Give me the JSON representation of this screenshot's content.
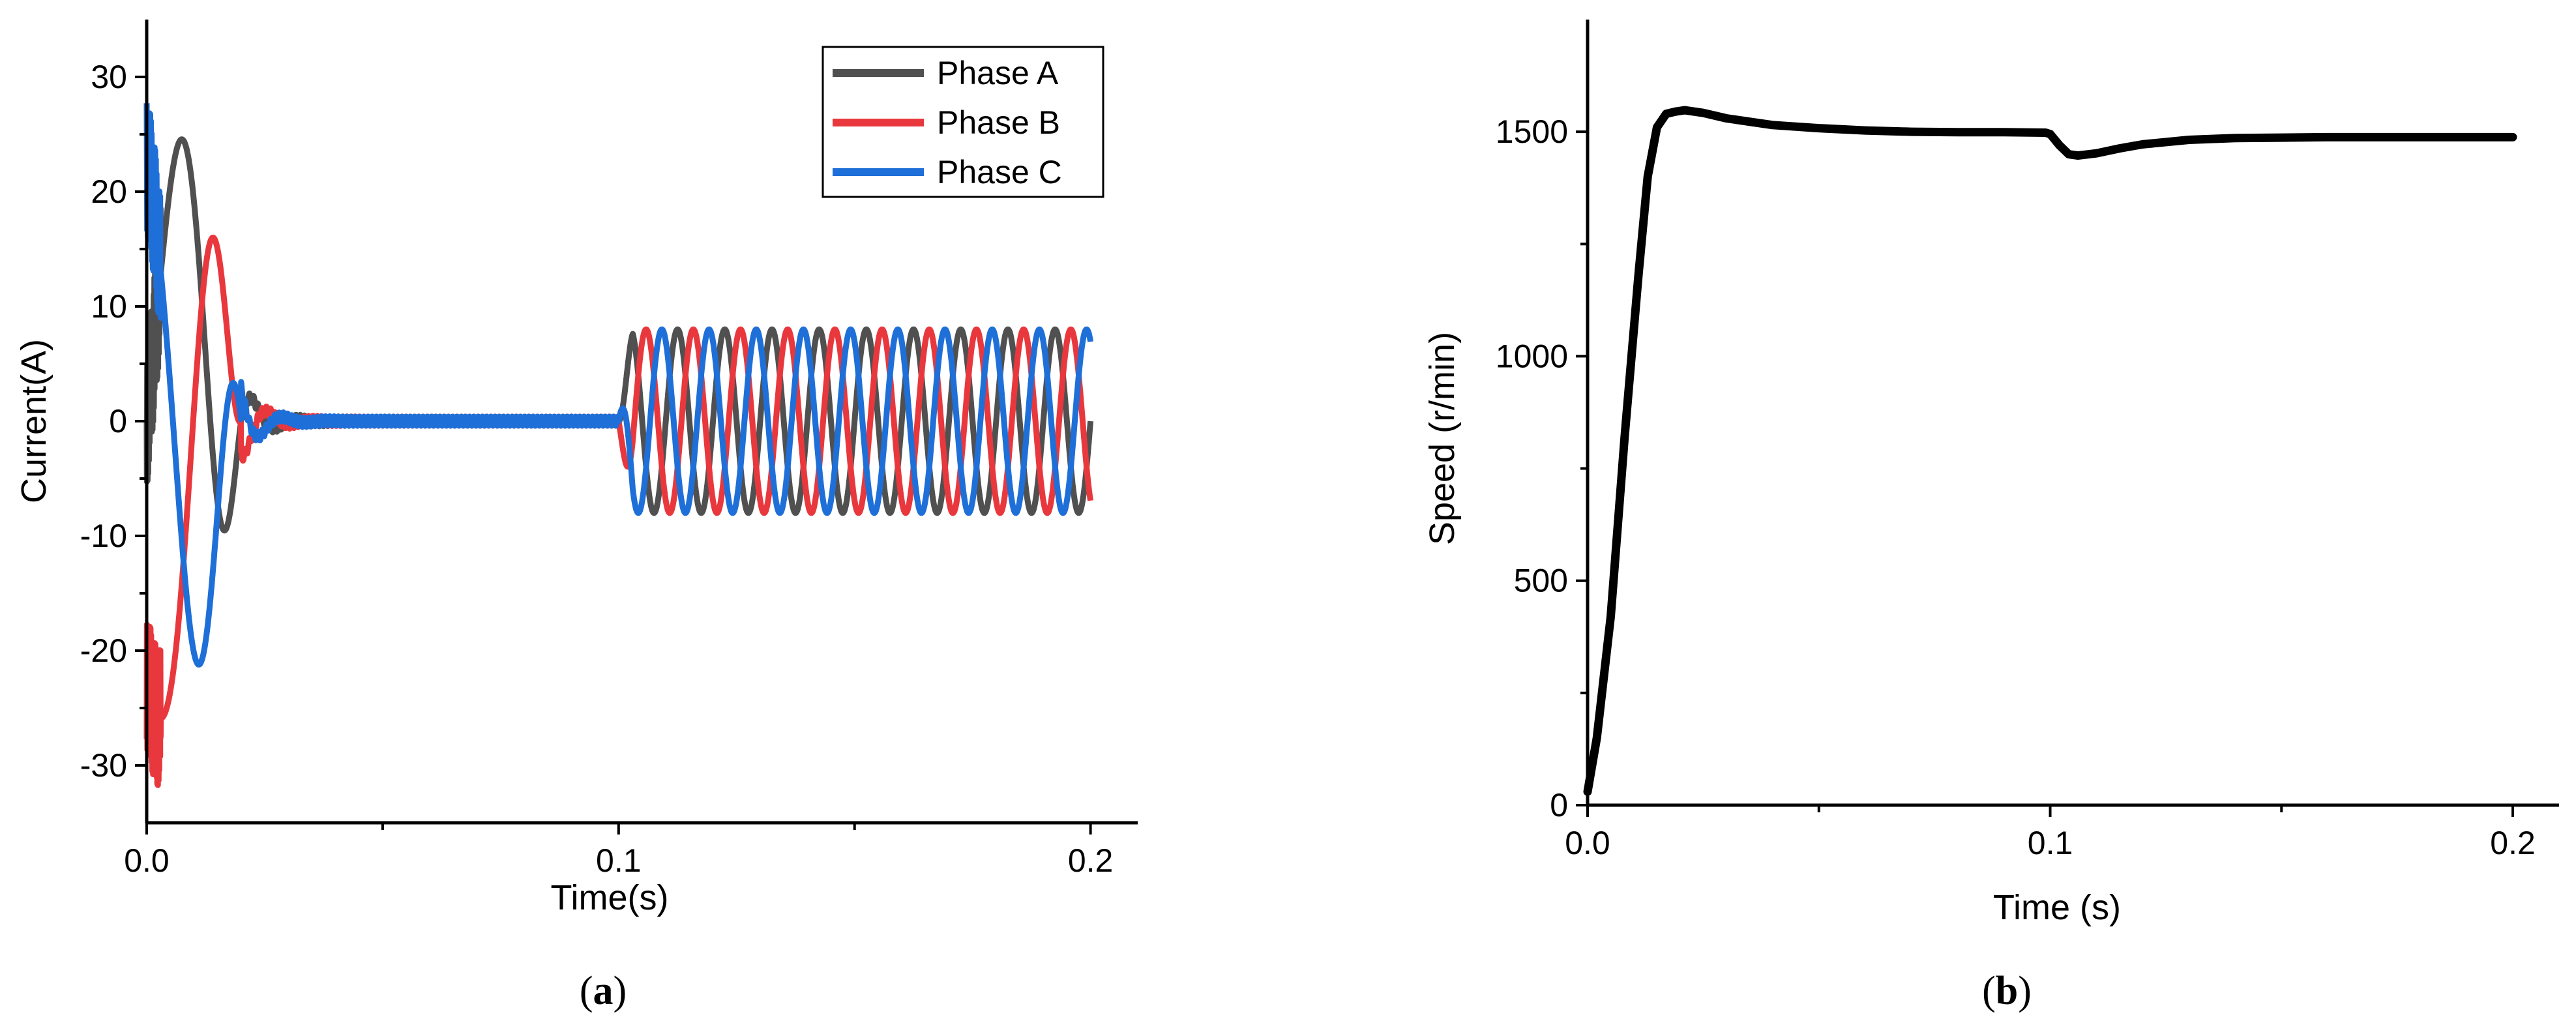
{
  "chart_data": [
    {
      "type": "line",
      "panel_label": {
        "open": "(",
        "letter": "a",
        "close": ")"
      },
      "xlabel": "Time(s)",
      "ylabel": "Current(A)",
      "xlim": [
        0,
        0.21
      ],
      "ylim": [
        -35,
        35
      ],
      "x_ticks": [
        {
          "value": 0.0,
          "label": "0.0"
        },
        {
          "value": 0.1,
          "label": "0.1"
        },
        {
          "value": 0.2,
          "label": "0.2"
        }
      ],
      "y_ticks": [
        {
          "value": -30,
          "label": "-30"
        },
        {
          "value": -20,
          "label": "-20"
        },
        {
          "value": -10,
          "label": "-10"
        },
        {
          "value": 0,
          "label": "0"
        },
        {
          "value": 10,
          "label": "10"
        },
        {
          "value": 20,
          "label": "20"
        },
        {
          "value": 30,
          "label": "30"
        }
      ],
      "legend": {
        "position": "top-right"
      },
      "grid": false,
      "series": [
        {
          "name": "Phase A",
          "color": "#505050",
          "phase_deg": 0
        },
        {
          "name": "Phase B",
          "color": "#e8383d",
          "phase_deg": -120
        },
        {
          "name": "Phase C",
          "color": "#1f6fd8",
          "phase_deg": 120
        }
      ],
      "signal": {
        "startup_peak_A": 26,
        "startup_end_s": 0.02,
        "no_load_until_s": 0.1,
        "load_amplitude_A": 8,
        "load_frequency_hz": 100,
        "x_end": 0.2
      }
    },
    {
      "type": "line",
      "panel_label": {
        "open": "(",
        "letter": "b",
        "close": ")"
      },
      "xlabel": "Time (s)",
      "ylabel": "Speed (r/min)",
      "xlim": [
        0,
        0.21
      ],
      "ylim": [
        0,
        1750
      ],
      "x_ticks": [
        {
          "value": 0.0,
          "label": "0.0"
        },
        {
          "value": 0.1,
          "label": "0.1"
        },
        {
          "value": 0.2,
          "label": "0.2"
        }
      ],
      "y_ticks": [
        {
          "value": 0,
          "label": "0"
        },
        {
          "value": 500,
          "label": "500"
        },
        {
          "value": 1000,
          "label": "1000"
        },
        {
          "value": 1500,
          "label": "1500"
        }
      ],
      "grid": false,
      "series": [
        {
          "name": "",
          "color": "#000000",
          "x": [
            0,
            0.002,
            0.005,
            0.008,
            0.011,
            0.013,
            0.015,
            0.017,
            0.019,
            0.021,
            0.025,
            0.03,
            0.04,
            0.05,
            0.06,
            0.07,
            0.08,
            0.09,
            0.099,
            0.1,
            0.102,
            0.104,
            0.106,
            0.11,
            0.115,
            0.12,
            0.13,
            0.14,
            0.15,
            0.16,
            0.18,
            0.2
          ],
          "values": [
            30,
            150,
            420,
            820,
            1180,
            1400,
            1510,
            1540,
            1545,
            1548,
            1542,
            1530,
            1515,
            1508,
            1503,
            1500,
            1499,
            1499,
            1498,
            1495,
            1470,
            1450,
            1447,
            1452,
            1463,
            1472,
            1482,
            1486,
            1487,
            1488,
            1488,
            1488
          ]
        }
      ]
    }
  ]
}
